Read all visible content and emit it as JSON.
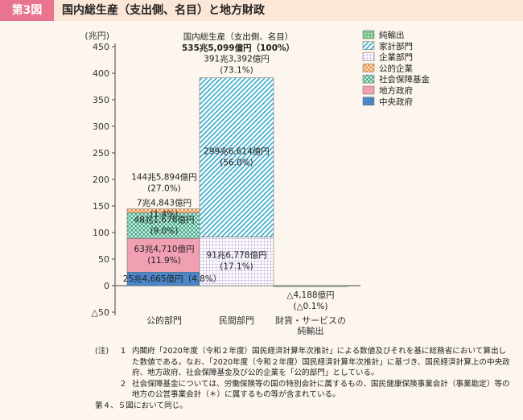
{
  "header": {
    "figure_number": "第3図",
    "title": "国内総生産（支出側、名目）と地方財政"
  },
  "chart_data": {
    "type": "bar",
    "stacked": true,
    "unit_label": "(兆円)",
    "ylim": [
      -50,
      450
    ],
    "yticks": [
      -50,
      0,
      50,
      100,
      150,
      200,
      250,
      300,
      350,
      400,
      450
    ],
    "ytick_labels": [
      "△50",
      "0",
      "50",
      "100",
      "150",
      "200",
      "250",
      "300",
      "350",
      "400",
      "450"
    ],
    "grid": false,
    "legend_position": "top-right",
    "categories": [
      "公的部門",
      "民間部門",
      "財貨・サービスの純輸出"
    ],
    "category_labels": [
      [
        "公的部門"
      ],
      [
        "民間部門"
      ],
      [
        "財貨・サービスの",
        "純輸出"
      ]
    ],
    "total_annotation": [
      "国内総生産（支出側、名目）",
      "535兆5,099億円（100%）"
    ],
    "series": [
      {
        "name": "中央政府",
        "values": [
          25.4665,
          0,
          0
        ],
        "color": "#4a86c8",
        "pattern": "solid"
      },
      {
        "name": "地方政府",
        "values": [
          63.471,
          0,
          0
        ],
        "color": "#f1a0b4",
        "pattern": "solid"
      },
      {
        "name": "社会保障基金",
        "values": [
          48.1676,
          0,
          0
        ],
        "color": "#3aa587",
        "pattern": "check"
      },
      {
        "name": "公的企業",
        "values": [
          7.4843,
          0,
          0
        ],
        "color": "#f08a3c",
        "pattern": "check"
      },
      {
        "name": "企業部門",
        "values": [
          0,
          91.6778,
          0
        ],
        "color": "#b8a4d6",
        "pattern": "grid"
      },
      {
        "name": "家計部門",
        "values": [
          0,
          299.6614,
          0
        ],
        "color": "#45b0cf",
        "pattern": "diag"
      },
      {
        "name": "純輸出",
        "values": [
          0,
          0,
          -0.4188
        ],
        "color": "#7cc48a",
        "pattern": "dot"
      }
    ],
    "bar_totals": [
      144.5894,
      391.3392,
      -0.4188
    ],
    "data_labels": [
      {
        "series": "中央政府",
        "category": "公的部門",
        "lines": [
          "25兆4,665億円（4.8%）"
        ]
      },
      {
        "series": "地方政府",
        "category": "公的部門",
        "lines": [
          "63兆4,710億円",
          "(11.9%)"
        ]
      },
      {
        "series": "社会保障基金",
        "category": "公的部門",
        "lines": [
          "48兆1,676億円",
          "(9.0%)"
        ]
      },
      {
        "series": "公的企業",
        "category": "公的部門",
        "lines": [
          "7兆4,843億円",
          "(1.4%)"
        ]
      },
      {
        "series": "公的部門合計",
        "category": "公的部門",
        "lines": [
          "144兆5,894億円",
          "(27.0%)"
        ]
      },
      {
        "series": "企業部門",
        "category": "民間部門",
        "lines": [
          "91兆6,778億円",
          "(17.1%)"
        ]
      },
      {
        "series": "家計部門",
        "category": "民間部門",
        "lines": [
          "299兆6,614億円",
          "(56.0%)"
        ]
      },
      {
        "series": "民間部門合計",
        "category": "民間部門",
        "lines": [
          "391兆3,392億円",
          "(73.1%)"
        ]
      },
      {
        "series": "純輸出",
        "category": "財貨・サービスの純輸出",
        "lines": [
          "△4,188億円",
          "(△0.1%)"
        ]
      }
    ],
    "legend_order": [
      "純輸出",
      "家計部門",
      "企業部門",
      "公的企業",
      "社会保障基金",
      "地方政府",
      "中央政府"
    ]
  },
  "notes": {
    "label": "(注)",
    "items": [
      {
        "num": "1",
        "text": "内閣府「2020年度（令和２年度）国民経済計算年次推計」による数値及びそれを基に総務省において算出した数値である。なお、「2020年度（令和２年度）国民経済計算年次推計」に基づき、国民経済計算上の中央政府、地方政府、社会保障基金及び公的企業を「公的部門」としている。"
      },
      {
        "num": "2",
        "text": "社会保障基金については、労働保険等の国の特別会計に属するもの、国民健康保険事業会計（事業勘定）等の地方の公営事業会計（＊）に属するもの等が含まれている。"
      }
    ],
    "footer": "第４、５図において同じ。"
  }
}
